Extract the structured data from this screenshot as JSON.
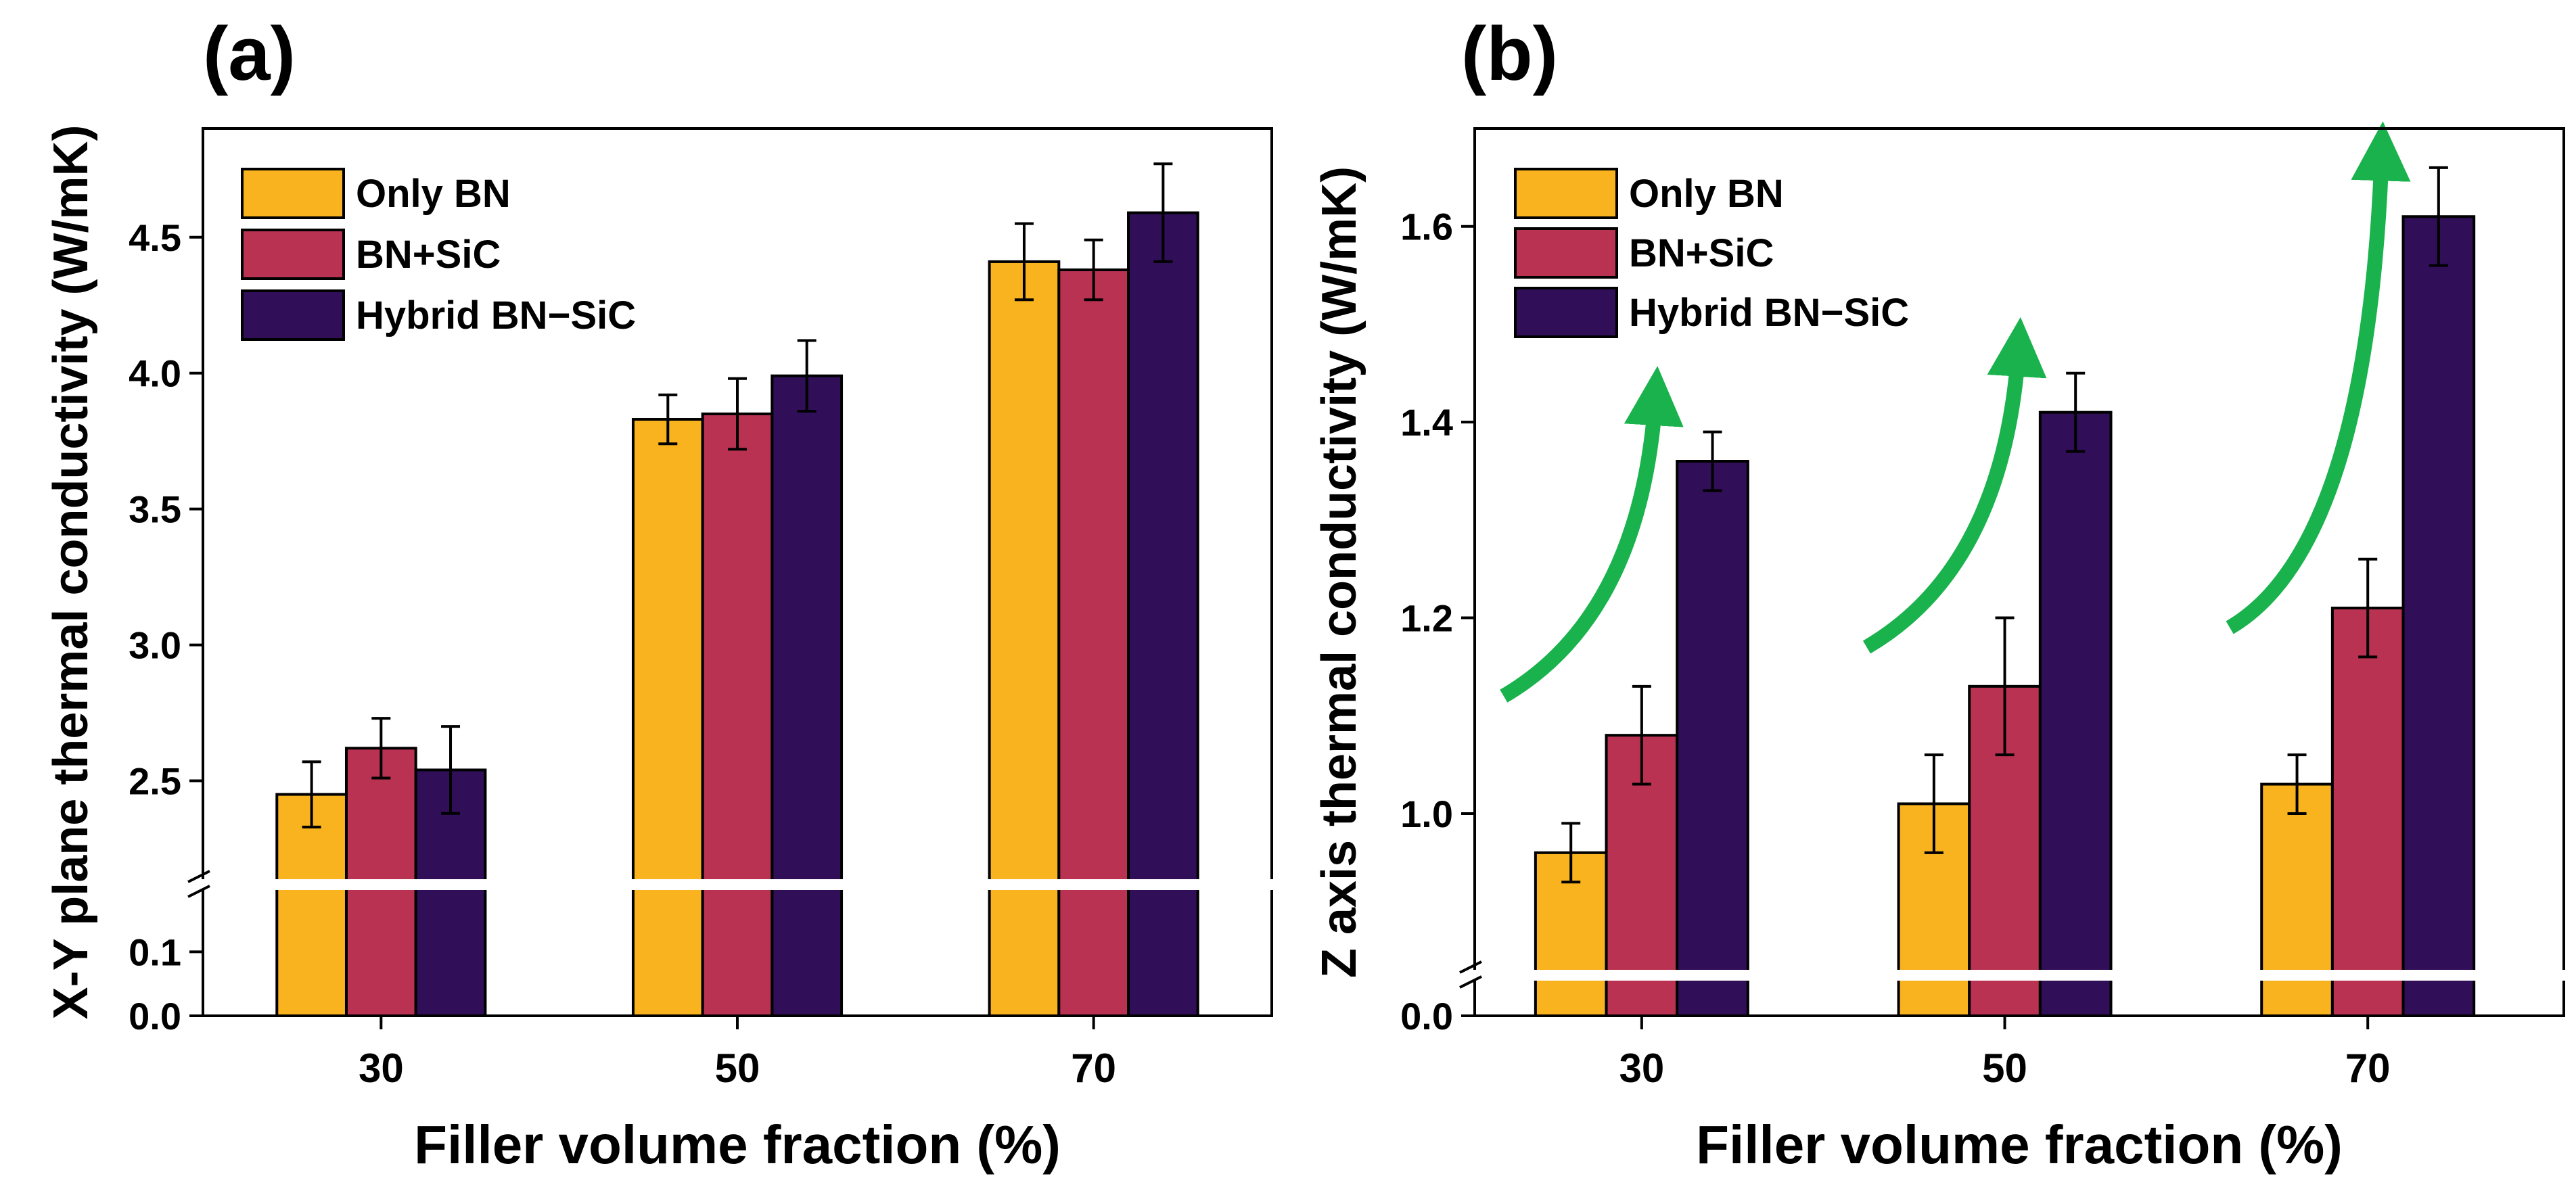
{
  "colors": {
    "only_bn": "#F8B31F",
    "bn_sic": "#B93252",
    "hybrid": "#300E58",
    "arrow": "#19B24C"
  },
  "chart_data": [
    {
      "type": "bar",
      "panel_label": "(a)",
      "categories": [
        "30",
        "50",
        "70"
      ],
      "series": [
        {
          "name": "Only BN",
          "values": [
            2.45,
            3.83,
            4.41
          ],
          "errors": [
            0.12,
            0.09,
            0.14
          ]
        },
        {
          "name": "BN+SiC",
          "values": [
            2.62,
            3.85,
            4.38
          ],
          "errors": [
            0.11,
            0.13,
            0.11
          ]
        },
        {
          "name": "Hybrid BN−SiC",
          "values": [
            2.54,
            3.99,
            4.59
          ],
          "errors": [
            0.16,
            0.13,
            0.18
          ]
        }
      ],
      "xlabel": "Filler volume fraction (%)",
      "ylabel": "X-Y plane thermal conductivity (W/mK)",
      "broken_axis": {
        "lower": [
          0.0,
          0.15
        ],
        "upper": [
          2.25,
          4.9
        ]
      },
      "yticks": [
        "0.0",
        "0.1",
        "2.5",
        "3.0",
        "3.5",
        "4.0",
        "4.5"
      ],
      "yticks_values": [
        0.0,
        0.1,
        2.5,
        3.0,
        3.5,
        4.0,
        4.5
      ],
      "legend": "top-left"
    },
    {
      "type": "bar",
      "panel_label": "(b)",
      "categories": [
        "30",
        "50",
        "70"
      ],
      "series": [
        {
          "name": "Only BN",
          "values": [
            0.96,
            1.01,
            1.03
          ],
          "errors": [
            0.03,
            0.05,
            0.03
          ]
        },
        {
          "name": "BN+SiC",
          "values": [
            1.08,
            1.13,
            1.21
          ],
          "errors": [
            0.05,
            0.07,
            0.05
          ]
        },
        {
          "name": "Hybrid BN−SiC",
          "values": [
            1.36,
            1.41,
            1.61
          ],
          "errors": [
            0.03,
            0.04,
            0.05
          ]
        }
      ],
      "xlabel": "Filler volume fraction (%)",
      "ylabel": "Z axis thermal conductivity (W/mK)",
      "broken_axis": {
        "lower": [
          0.0,
          0.05
        ],
        "upper": [
          0.85,
          1.7
        ]
      },
      "yticks": [
        "0.0",
        "1.0",
        "1.2",
        "1.4",
        "1.6"
      ],
      "yticks_values": [
        0.0,
        1.0,
        1.2,
        1.4,
        1.6
      ],
      "legend": "top-left",
      "annotations": "green arrows showing increase from Only BN to Hybrid BN−SiC"
    }
  ]
}
